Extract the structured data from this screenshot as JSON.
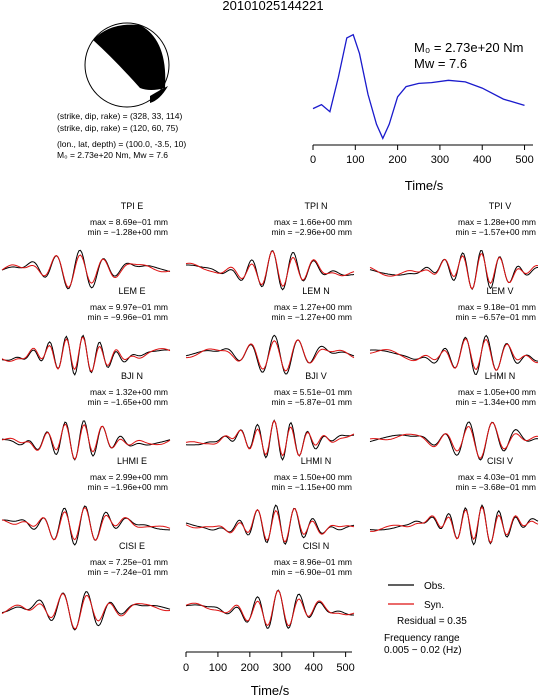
{
  "chart_data": {
    "type": "line",
    "title": "20101025144221",
    "mechanism": {
      "planes": [
        "(strike, dip, rake) = (328, 33, 114)",
        "(strike, dip, rake) = (120, 60, 75)"
      ],
      "location": "(lon., lat, depth) = (100.0, -3.5, 10)",
      "moment_line": "M₀ = 2.73e+20 Nm, Mw = 7.6"
    },
    "stf": {
      "m0_label": "M₀ = 2.73e+20 Nm",
      "mw_label": "Mw = 7.6",
      "x_ticks": [
        "0",
        "100",
        "200",
        "300",
        "400",
        "500"
      ],
      "xlabel": "Time/s",
      "xlim": [
        0,
        520
      ],
      "color": "#1a1acc",
      "x": [
        0,
        20,
        40,
        60,
        80,
        95,
        110,
        130,
        150,
        165,
        180,
        200,
        220,
        250,
        280,
        320,
        360,
        400,
        450,
        500
      ],
      "y": [
        0.1,
        0.15,
        0.06,
        0.5,
        1.0,
        1.04,
        0.8,
        0.28,
        -0.1,
        -0.28,
        -0.1,
        0.25,
        0.38,
        0.42,
        0.43,
        0.46,
        0.44,
        0.36,
        0.22,
        0.14
      ]
    },
    "waveforms": [
      {
        "id": "tpi-e",
        "label": "TPI E",
        "max": "max = 8.69e−01 mm",
        "min": "min = −1.28e+00 mm",
        "col": 0,
        "row": 0
      },
      {
        "id": "tpi-n",
        "label": "TPI N",
        "max": "max = 1.66e+00 mm",
        "min": "min = −2.96e+00 mm",
        "col": 1,
        "row": 0
      },
      {
        "id": "tpi-v",
        "label": "TPI V",
        "max": "max = 1.28e+00 mm",
        "min": "min = −1.57e+00 mm",
        "col": 2,
        "row": 0
      },
      {
        "id": "lem-e",
        "label": "LEM E",
        "max": "max = 9.97e−01 mm",
        "min": "min = −9.96e−01 mm",
        "col": 0,
        "row": 1
      },
      {
        "id": "lem-n",
        "label": "LEM N",
        "max": "max = 1.27e+00 mm",
        "min": "min = −1.27e+00 mm",
        "col": 1,
        "row": 1
      },
      {
        "id": "lem-v",
        "label": "LEM V",
        "max": "max = 9.18e−01 mm",
        "min": "min = −6.57e−01 mm",
        "col": 2,
        "row": 1
      },
      {
        "id": "bji-n",
        "label": "BJI N",
        "max": "max = 1.32e+00 mm",
        "min": "min = −1.65e+00 mm",
        "col": 0,
        "row": 2
      },
      {
        "id": "bji-v",
        "label": "BJI V",
        "max": "max = 5.51e−01 mm",
        "min": "min = −5.87e−01 mm",
        "col": 1,
        "row": 2
      },
      {
        "id": "lhmi-n",
        "label": "LHMI N",
        "max": "max = 1.05e+00 mm",
        "min": "min = −1.34e+00 mm",
        "col": 2,
        "row": 2
      },
      {
        "id": "lhmi-e",
        "label": "LHMI E",
        "max": "max = 2.99e+00 mm",
        "min": "min = −1.96e+00 mm",
        "col": 0,
        "row": 3
      },
      {
        "id": "lhmi-n2",
        "label": "LHMI N",
        "max": "max = 1.50e+00 mm",
        "min": "min = −1.15e+00 mm",
        "col": 1,
        "row": 3
      },
      {
        "id": "cisi-v",
        "label": "CISI V",
        "max": "max = 4.03e−01 mm",
        "min": "min = −3.68e−01 mm",
        "col": 2,
        "row": 3
      },
      {
        "id": "cisi-e",
        "label": "CISI E",
        "max": "max = 7.25e−01 mm",
        "min": "min = −7.24e−01 mm",
        "col": 0,
        "row": 4
      },
      {
        "id": "cisi-n",
        "label": "CISI N",
        "max": "max = 8.96e−01 mm",
        "min": "min = −6.90e−01 mm",
        "col": 1,
        "row": 4
      }
    ],
    "time_axis": {
      "ticks": [
        "0",
        "100",
        "200",
        "300",
        "400",
        "500"
      ],
      "xlabel": "Time/s",
      "xlim": [
        0,
        520
      ]
    },
    "legend": {
      "obs_label": "Obs.",
      "obs_color": "#000000",
      "syn_label": "Syn.",
      "syn_color": "#dd1111",
      "residual": "Residual = 0.35",
      "freq_title": "Frequency range",
      "freq_value": "0.005 − 0.02 (Hz)"
    }
  }
}
